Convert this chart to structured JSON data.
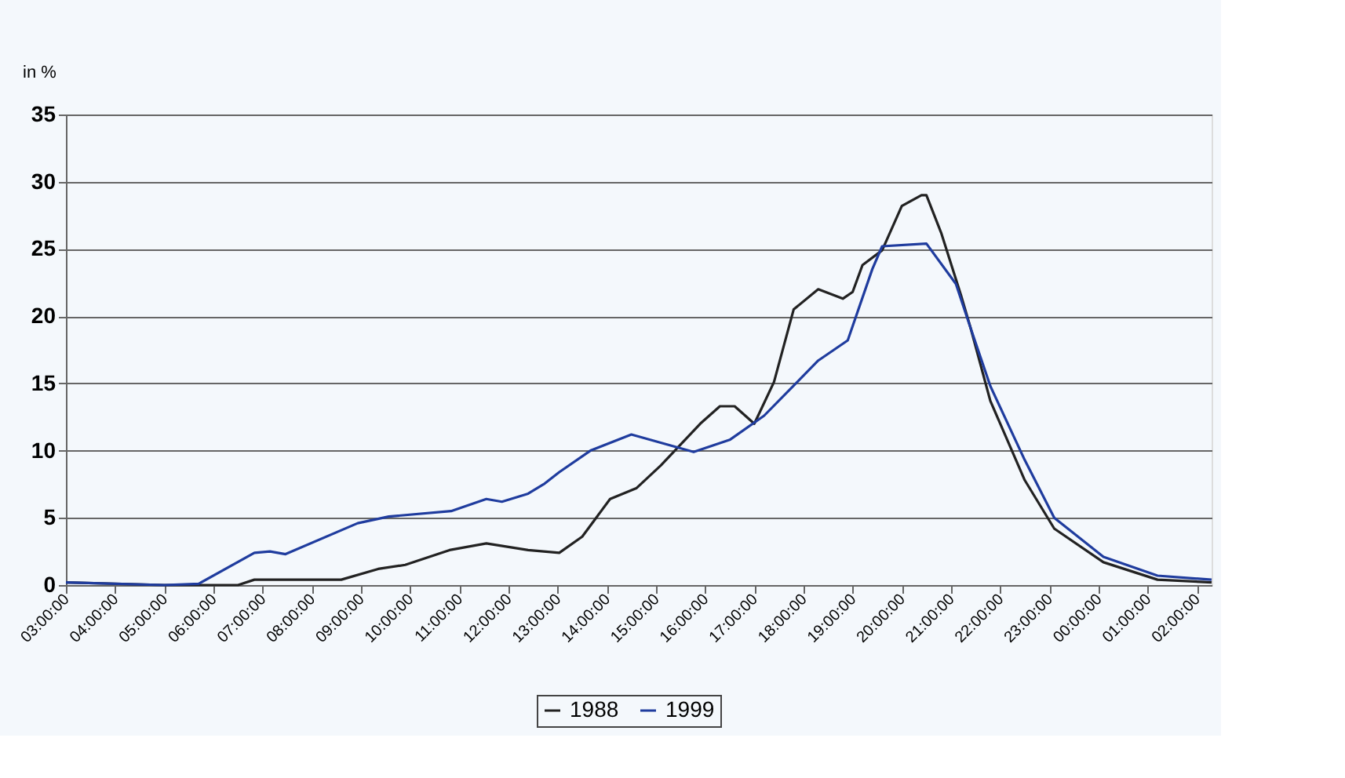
{
  "chart_data": {
    "type": "line",
    "ylabel": "in %",
    "legend": "bottom",
    "grid": "y",
    "marker": "none",
    "line_style": "solid",
    "xlim": [
      "2000-01-01T03:00",
      "2000-01-02T02:18"
    ],
    "ylim": [
      0,
      35
    ],
    "yticks": [
      0,
      5,
      10,
      15,
      20,
      25,
      30,
      35
    ],
    "xticks": [
      {
        "value": "2000-01-01T03:00",
        "label": "03:00:00"
      },
      {
        "value": "2000-01-01T04:00",
        "label": "04:00:00"
      },
      {
        "value": "2000-01-01T05:00",
        "label": "05:00:00"
      },
      {
        "value": "2000-01-01T06:00",
        "label": "06:00:00"
      },
      {
        "value": "2000-01-01T07:00",
        "label": "07:00:00"
      },
      {
        "value": "2000-01-01T08:00",
        "label": "08:00:00"
      },
      {
        "value": "2000-01-01T09:00",
        "label": "09:00:00"
      },
      {
        "value": "2000-01-01T10:00",
        "label": "10:00:00"
      },
      {
        "value": "2000-01-01T11:00",
        "label": "11:00:00"
      },
      {
        "value": "2000-01-01T12:00",
        "label": "12:00:00"
      },
      {
        "value": "2000-01-01T13:00",
        "label": "13:00:00"
      },
      {
        "value": "2000-01-01T14:00",
        "label": "14:00:00"
      },
      {
        "value": "2000-01-01T15:00",
        "label": "15:00:00"
      },
      {
        "value": "2000-01-01T16:00",
        "label": "16:00:00"
      },
      {
        "value": "2000-01-01T17:00",
        "label": "17:00:00"
      },
      {
        "value": "2000-01-01T18:00",
        "label": "18:00:00"
      },
      {
        "value": "2000-01-01T19:00",
        "label": "19:00:00"
      },
      {
        "value": "2000-01-01T20:00",
        "label": "20:00:00"
      },
      {
        "value": "2000-01-01T21:00",
        "label": "21:00:00"
      },
      {
        "value": "2000-01-01T22:00",
        "label": "22:00:00"
      },
      {
        "value": "2000-01-01T23:00",
        "label": "23:00:00"
      },
      {
        "value": "2000-01-02T00:00",
        "label": "00:00:00"
      },
      {
        "value": "2000-01-02T01:00",
        "label": "01:00:00"
      },
      {
        "value": "2000-01-02T02:00",
        "label": "02:00:00"
      }
    ],
    "series": [
      {
        "name": "1988",
        "color": "#222222",
        "x": [
          "2000-01-01T03:00",
          "2000-01-01T05:00",
          "2000-01-01T06:30",
          "2000-01-01T06:50",
          "2000-01-01T08:36",
          "2000-01-01T09:21",
          "2000-01-01T09:54",
          "2000-01-01T10:48",
          "2000-01-01T11:33",
          "2000-01-01T12:24",
          "2000-01-01T13:02",
          "2000-01-01T13:30",
          "2000-01-01T14:04",
          "2000-01-01T14:36",
          "2000-01-01T15:06",
          "2000-01-01T15:54",
          "2000-01-01T16:18",
          "2000-01-01T16:36",
          "2000-01-01T17:00",
          "2000-01-01T17:24",
          "2000-01-01T17:48",
          "2000-01-01T18:18",
          "2000-01-01T18:48",
          "2000-01-01T19:00",
          "2000-01-01T19:12",
          "2000-01-01T19:36",
          "2000-01-01T20:00",
          "2000-01-01T20:24",
          "2000-01-01T20:30",
          "2000-01-01T20:48",
          "2000-01-01T21:12",
          "2000-01-01T21:24",
          "2000-01-01T21:48",
          "2000-01-01T22:30",
          "2000-01-01T23:06",
          "2000-01-02T00:06",
          "2000-01-02T01:12",
          "2000-01-02T02:18"
        ],
        "values": [
          0.2,
          0,
          0,
          0.4,
          0.4,
          1.2,
          1.5,
          2.6,
          3.1,
          2.6,
          2.4,
          3.6,
          6.4,
          7.2,
          8.9,
          12.0,
          13.3,
          13.3,
          12.0,
          15.1,
          20.5,
          22.0,
          21.3,
          21.8,
          23.8,
          24.9,
          28.2,
          29.0,
          29.0,
          26.2,
          21.6,
          19.1,
          13.7,
          7.8,
          4.2,
          1.7,
          0.4,
          0.2
        ]
      },
      {
        "name": "1999",
        "color": "#1f3c9e",
        "x": [
          "2000-01-01T03:00",
          "2000-01-01T05:00",
          "2000-01-01T05:42",
          "2000-01-01T06:50",
          "2000-01-01T07:09",
          "2000-01-01T07:28",
          "2000-01-01T08:56",
          "2000-01-01T09:34",
          "2000-01-01T10:50",
          "2000-01-01T11:33",
          "2000-01-01T11:52",
          "2000-01-01T12:24",
          "2000-01-01T12:43",
          "2000-01-01T13:02",
          "2000-01-01T13:40",
          "2000-01-01T14:30",
          "2000-01-01T15:46",
          "2000-01-01T16:30",
          "2000-01-01T17:12",
          "2000-01-01T18:18",
          "2000-01-01T18:54",
          "2000-01-01T19:24",
          "2000-01-01T19:36",
          "2000-01-01T20:30",
          "2000-01-01T21:06",
          "2000-01-01T21:24",
          "2000-01-01T21:48",
          "2000-01-01T22:30",
          "2000-01-01T23:06",
          "2000-01-02T00:06",
          "2000-01-02T01:12",
          "2000-01-02T02:18"
        ],
        "values": [
          0.2,
          0,
          0.1,
          2.4,
          2.5,
          2.3,
          4.6,
          5.1,
          5.5,
          6.4,
          6.2,
          6.8,
          7.5,
          8.4,
          10.0,
          11.2,
          9.9,
          10.8,
          12.6,
          16.7,
          18.2,
          23.5,
          25.2,
          25.4,
          22.4,
          19.1,
          14.8,
          9.3,
          5.0,
          2.1,
          0.7,
          0.4
        ]
      }
    ]
  }
}
